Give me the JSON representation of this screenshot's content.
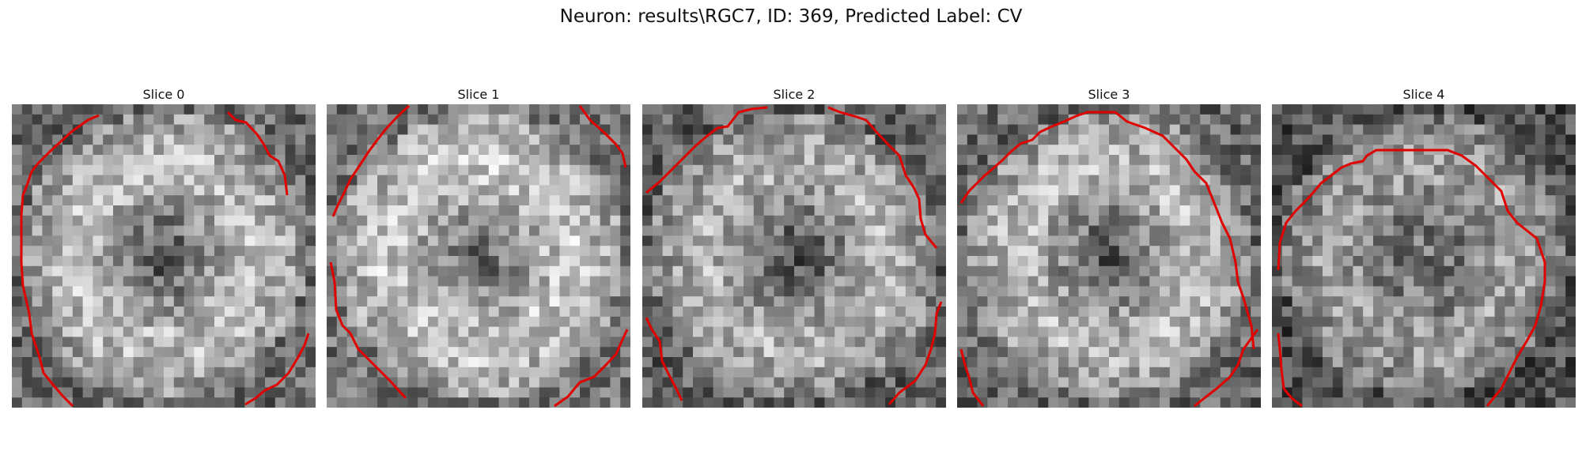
{
  "figure": {
    "title": "Neuron: results\\RGC7, ID: 369, Predicted Label: CV"
  },
  "colors": {
    "contour": "#e00000"
  },
  "panels": [
    {
      "title": "Slice 0",
      "mean_brightness": 0.56,
      "dark_center": true
    },
    {
      "title": "Slice 1",
      "mean_brightness": 0.6,
      "dark_center": true
    },
    {
      "title": "Slice 2",
      "mean_brightness": 0.52,
      "dark_center": true
    },
    {
      "title": "Slice 3",
      "mean_brightness": 0.55,
      "dark_center": true
    },
    {
      "title": "Slice 4",
      "mean_brightness": 0.45,
      "dark_center": false
    }
  ]
}
